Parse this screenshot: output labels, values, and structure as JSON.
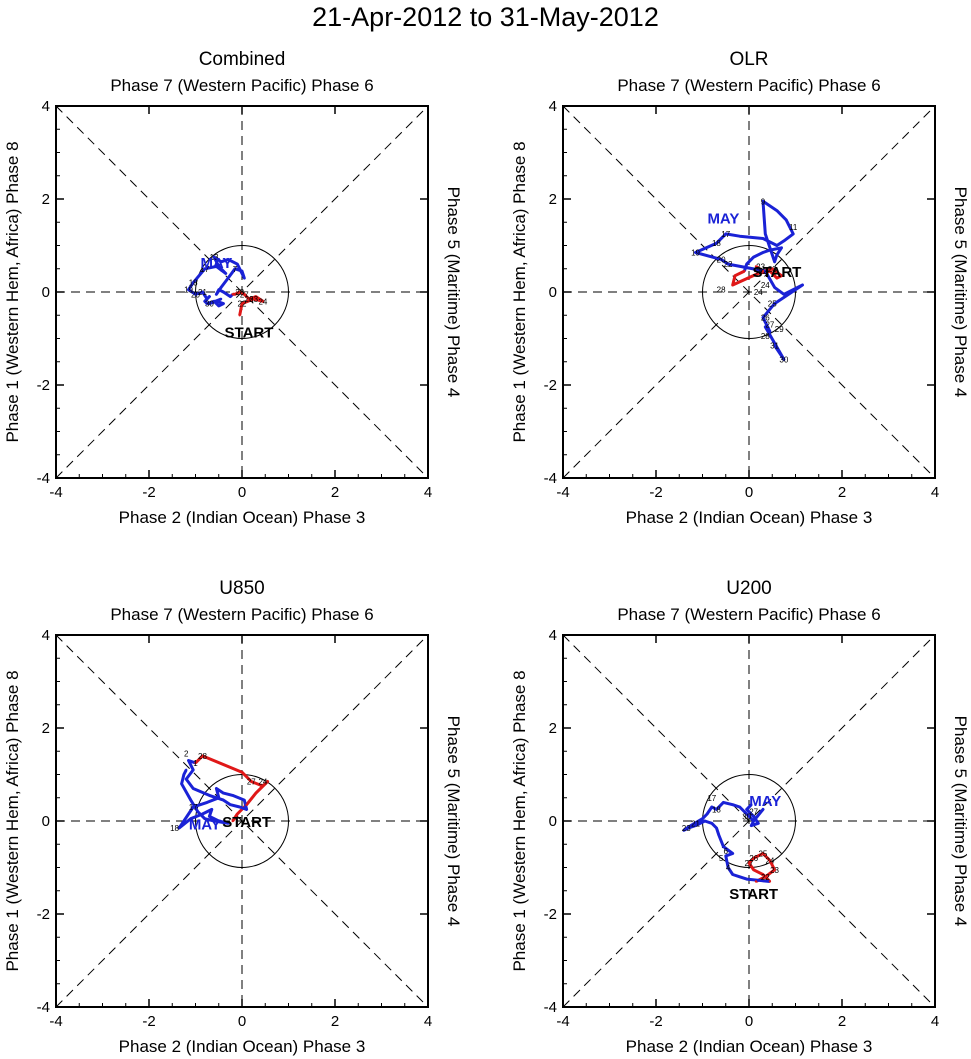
{
  "title": "21-Apr-2012 to 31-May-2012",
  "colors": {
    "april": "#e01818",
    "may": "#1a22d6",
    "axis": "#000000",
    "guide": "#000000"
  },
  "axis_labels": {
    "top": "Phase 7 (Western Pacific) Phase 6",
    "bottom": "Phase 2 (Indian Ocean) Phase 3",
    "left": "Phase 1 (Western Hem, Africa) Phase 8",
    "right": "Phase 5 (Maritime) Phase 4"
  },
  "ticks": {
    "values": [
      -4,
      -2,
      0,
      2,
      4
    ],
    "labels": [
      "-4",
      "-2",
      "0",
      "2",
      "4"
    ]
  },
  "start_label": "START",
  "may_label": "MAY",
  "chart_data": [
    {
      "type": "line",
      "title": "Combined",
      "xlim": [
        -4,
        4
      ],
      "ylim": [
        -4,
        4
      ],
      "april_days": [
        "21",
        "22",
        "23",
        "24",
        "25",
        "26",
        "27",
        "28",
        "29",
        "30"
      ],
      "april_x": [
        -0.05,
        0.0,
        0.25,
        0.45,
        0.3,
        0.15,
        0.05,
        -0.05,
        -0.15,
        -0.2
      ],
      "april_y": [
        -0.5,
        -0.25,
        -0.15,
        -0.2,
        -0.1,
        -0.15,
        -0.05,
        0.0,
        -0.05,
        -0.05
      ],
      "may_days": [
        "1",
        "2",
        "3",
        "4",
        "5",
        "6",
        "7",
        "8",
        "9",
        "10",
        "11",
        "12",
        "13",
        "14",
        "15",
        "16",
        "17",
        "18",
        "19",
        "20",
        "21",
        "22",
        "23",
        "24",
        "25",
        "26",
        "27",
        "28",
        "29",
        "30",
        "31"
      ],
      "may_x": [
        -0.25,
        -0.4,
        -0.5,
        -0.55,
        -0.45,
        -0.3,
        -0.15,
        0.0,
        0.05,
        -0.1,
        -0.3,
        -0.45,
        -0.6,
        -0.5,
        -0.35,
        -0.55,
        -0.8,
        -1.05,
        -1.15,
        -1.0,
        -0.85,
        -0.75,
        -0.7,
        -0.8,
        -0.75,
        -0.6,
        -0.5,
        -0.4,
        -0.55,
        -0.7,
        -0.45
      ],
      "may_y": [
        -0.1,
        0.0,
        0.05,
        -0.05,
        0.1,
        0.3,
        0.5,
        0.45,
        0.3,
        0.6,
        0.7,
        0.65,
        0.75,
        0.55,
        0.4,
        0.55,
        0.5,
        0.2,
        0.05,
        -0.05,
        0.0,
        -0.15,
        -0.1,
        -0.2,
        -0.25,
        -0.2,
        -0.3,
        -0.25,
        -0.2,
        -0.25,
        -0.15
      ],
      "april_labels": {
        "days": [
          "22",
          "23",
          "24",
          "26",
          "27",
          "28"
        ],
        "x": [
          0.0,
          0.25,
          0.45,
          0.15,
          0.05,
          -0.05
        ],
        "y": [
          -0.25,
          -0.15,
          -0.2,
          -0.15,
          -0.05,
          0.0
        ]
      },
      "may_labels": {
        "days": [
          "7",
          "13",
          "17",
          "18",
          "19",
          "20",
          "21",
          "30"
        ],
        "x": [
          -0.15,
          -0.6,
          -0.8,
          -1.05,
          -1.15,
          -1.0,
          -0.85,
          -0.7
        ],
        "y": [
          0.5,
          0.75,
          0.5,
          0.2,
          0.05,
          -0.05,
          0.0,
          -0.25
        ]
      },
      "start_pos": [
        0.15,
        -0.85
      ],
      "may_pos": [
        -0.55,
        0.65
      ]
    },
    {
      "type": "line",
      "title": "OLR",
      "xlim": [
        -4,
        4
      ],
      "ylim": [
        -4,
        4
      ],
      "april_days": [
        "21",
        "22",
        "23",
        "24",
        "25",
        "26",
        "27",
        "28",
        "29",
        "30"
      ],
      "april_x": [
        0.15,
        0.3,
        0.5,
        0.7,
        0.6,
        0.45,
        0.2,
        -0.35,
        -0.3,
        -0.1
      ],
      "april_y": [
        0.55,
        0.45,
        0.5,
        0.35,
        0.3,
        0.45,
        0.4,
        0.15,
        0.35,
        0.45
      ],
      "may_days": [
        "1",
        "2",
        "3",
        "4",
        "5",
        "6",
        "7",
        "8",
        "9",
        "10",
        "11",
        "12",
        "13",
        "14",
        "15",
        "16",
        "17",
        "18",
        "19",
        "20",
        "21",
        "22",
        "23",
        "24",
        "25",
        "26",
        "27",
        "28",
        "29",
        "30",
        "31"
      ],
      "may_x": [
        -0.05,
        0.1,
        0.3,
        0.45,
        0.7,
        0.6,
        0.55,
        0.35,
        0.3,
        0.6,
        0.8,
        0.95,
        0.75,
        0.6,
        0.3,
        -0.2,
        -0.5,
        -0.7,
        -1.15,
        -0.6,
        -0.45,
        0.35,
        0.55,
        0.75,
        1.15,
        0.55,
        0.3,
        0.45,
        0.35,
        0.75,
        0.55
      ],
      "may_y": [
        0.6,
        0.75,
        0.85,
        0.9,
        0.95,
        0.8,
        0.65,
        1.25,
        1.95,
        1.75,
        1.55,
        1.25,
        1.1,
        1.0,
        1.15,
        1.2,
        1.25,
        1.05,
        0.85,
        0.7,
        0.6,
        0.45,
        0.1,
        -0.05,
        0.15,
        -0.25,
        -0.55,
        -0.85,
        -0.75,
        -1.45,
        -1.15
      ],
      "april_labels": {
        "days": [
          "22",
          "23",
          "24",
          "27",
          "28"
        ],
        "x": [
          0.3,
          0.5,
          0.2,
          0.2,
          -0.6
        ],
        "y": [
          0.45,
          0.5,
          0.0,
          0.4,
          0.05
        ]
      },
      "may_labels": {
        "days": [
          "9",
          "11",
          "17",
          "18",
          "19",
          "20",
          "22",
          "23",
          "24",
          "25",
          "26",
          "27",
          "28",
          "29",
          "30",
          "31"
        ],
        "x": [
          0.3,
          0.95,
          -0.5,
          -0.7,
          -1.15,
          -0.6,
          -0.45,
          0.25,
          0.35,
          0.5,
          0.35,
          0.45,
          0.35,
          0.65,
          0.75,
          0.55
        ],
        "y": [
          1.95,
          1.4,
          1.25,
          1.05,
          0.85,
          0.7,
          0.6,
          0.55,
          0.15,
          -0.25,
          -0.55,
          -0.7,
          -0.95,
          -0.8,
          -1.45,
          -1.15
        ]
      },
      "start_pos": [
        0.6,
        0.45
      ],
      "may_pos": [
        -0.55,
        1.6
      ]
    },
    {
      "type": "line",
      "title": "U850",
      "xlim": [
        -4,
        4
      ],
      "ylim": [
        -4,
        4
      ],
      "april_days": [
        "21",
        "22",
        "23",
        "24",
        "25",
        "26",
        "27",
        "28",
        "29",
        "30"
      ],
      "april_x": [
        -0.2,
        -0.1,
        0.1,
        0.3,
        0.55,
        0.45,
        0.2,
        0.0,
        -0.85,
        -1.0
      ],
      "april_y": [
        0.0,
        0.15,
        0.35,
        0.6,
        0.85,
        0.75,
        0.85,
        1.05,
        1.4,
        1.25
      ],
      "may_days": [
        "1",
        "2",
        "3",
        "4",
        "5",
        "6",
        "7",
        "8",
        "9",
        "10",
        "11",
        "12",
        "13",
        "14",
        "15",
        "16",
        "17",
        "18",
        "19",
        "20",
        "21",
        "22",
        "23",
        "24",
        "25",
        "26",
        "27",
        "28",
        "29",
        "30",
        "31"
      ],
      "may_x": [
        -1.15,
        -1.05,
        -1.2,
        -1.05,
        -0.7,
        -0.4,
        -0.25,
        -0.05,
        0.1,
        0.05,
        -0.2,
        -0.4,
        -0.55,
        -0.5,
        -0.75,
        -0.9,
        -1.05,
        -1.35,
        -1.1,
        -0.85,
        -0.65,
        -0.7,
        -0.5,
        -0.3,
        -0.6,
        -0.8,
        -0.95,
        -1.1,
        -1.3,
        -1.25,
        -1.2
      ],
      "may_y": [
        1.3,
        1.1,
        0.9,
        0.7,
        0.55,
        0.45,
        0.35,
        0.3,
        0.25,
        0.45,
        0.55,
        0.6,
        0.7,
        0.5,
        0.4,
        0.35,
        0.3,
        -0.15,
        0.05,
        0.15,
        0.25,
        0.1,
        0.0,
        -0.05,
        0.0,
        0.05,
        0.2,
        0.45,
        0.8,
        1.0,
        1.1
      ],
      "april_labels": {
        "days": [
          "24",
          "27",
          "28"
        ],
        "x": [
          0.45,
          0.2,
          -0.85
        ],
        "y": [
          0.85,
          0.85,
          1.4
        ]
      },
      "may_labels": {
        "days": [
          "1",
          "2",
          "17",
          "18"
        ],
        "x": [
          -1.0,
          -1.2,
          -1.05,
          -1.45
        ],
        "y": [
          1.25,
          1.45,
          0.3,
          -0.15
        ]
      },
      "start_pos": [
        0.1,
        0.0
      ],
      "may_pos": [
        -0.8,
        -0.05
      ]
    },
    {
      "type": "line",
      "title": "U200",
      "xlim": [
        -4,
        4
      ],
      "ylim": [
        -4,
        4
      ],
      "april_days": [
        "21",
        "22",
        "23",
        "24",
        "25",
        "26",
        "27",
        "28",
        "29",
        "30"
      ],
      "april_x": [
        0.15,
        0.35,
        0.55,
        0.45,
        0.3,
        0.1,
        0.0,
        0.1,
        0.3,
        0.45
      ],
      "april_y": [
        -1.3,
        -1.2,
        -1.05,
        -0.85,
        -0.7,
        -0.8,
        -0.9,
        -1.05,
        -1.15,
        -1.3
      ],
      "may_days": [
        "1",
        "2",
        "3",
        "4",
        "5",
        "6",
        "7",
        "8",
        "9",
        "10",
        "11",
        "12",
        "13",
        "14",
        "15",
        "16",
        "17",
        "18",
        "19",
        "20",
        "21",
        "22",
        "23",
        "24",
        "25",
        "26",
        "27",
        "28",
        "29",
        "30",
        "31"
      ],
      "may_x": [
        -0.05,
        -0.2,
        -0.35,
        -0.45,
        -0.5,
        -0.35,
        -0.55,
        -0.65,
        -0.7,
        -0.8,
        -0.95,
        -1.15,
        -1.3,
        -1.4,
        -1.25,
        -1.0,
        -0.9,
        -0.8,
        -0.7,
        -0.55,
        -0.35,
        -0.2,
        -0.05,
        0.1,
        0.3,
        0.1,
        0.05,
        0.2,
        0.1,
        -0.05,
        0.05
      ],
      "may_y": [
        -1.25,
        -1.2,
        -1.15,
        -1.0,
        -0.75,
        -0.7,
        -0.55,
        -0.3,
        -0.15,
        -0.05,
        0.0,
        -0.1,
        -0.15,
        -0.2,
        -0.1,
        0.05,
        0.15,
        0.3,
        0.25,
        0.4,
        0.35,
        0.3,
        0.15,
        0.0,
        0.25,
        0.0,
        -0.1,
        -0.05,
        0.1,
        0.25,
        0.35
      ],
      "april_labels": {
        "days": [
          "22",
          "23",
          "24",
          "25",
          "26",
          "27"
        ],
        "x": [
          0.35,
          0.55,
          0.45,
          0.3,
          0.1,
          0.0
        ],
        "y": [
          -1.2,
          -1.05,
          -0.85,
          -0.7,
          -0.8,
          -0.9
        ]
      },
      "may_labels": {
        "days": [
          "4",
          "5",
          "6",
          "17",
          "18",
          "21",
          "23",
          "27",
          "30"
        ],
        "x": [
          -0.45,
          -0.6,
          -0.5,
          -0.8,
          -0.7,
          -1.15,
          -1.35,
          0.1,
          -0.05
        ],
        "y": [
          -1.0,
          -0.8,
          -0.65,
          0.5,
          0.25,
          -0.05,
          -0.15,
          0.2,
          0.1
        ]
      },
      "start_pos": [
        0.1,
        -1.55
      ],
      "may_pos": [
        0.35,
        0.45
      ]
    }
  ]
}
